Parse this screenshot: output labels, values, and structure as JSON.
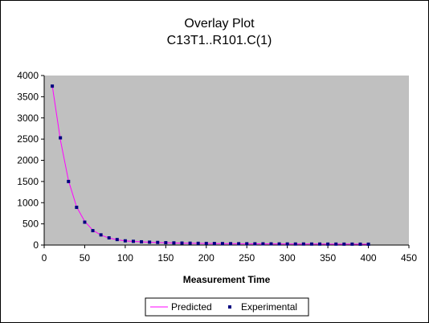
{
  "chart_data": {
    "type": "scatter",
    "title": "Overlay Plot",
    "subtitle": "C13T1..R101.C(1)",
    "xlabel": "Measurement Time",
    "ylabel": "",
    "xlim": [
      0,
      450
    ],
    "ylim": [
      0,
      4000
    ],
    "x_ticks": [
      0,
      50,
      100,
      150,
      200,
      250,
      300,
      350,
      400,
      450
    ],
    "y_ticks": [
      0,
      500,
      1000,
      1500,
      2000,
      2500,
      3000,
      3500,
      4000
    ],
    "grid": false,
    "legend_position": "bottom",
    "plot_background": "#C0C0C0",
    "series": [
      {
        "name": "Predicted",
        "style": "line",
        "color": "#FF00FF",
        "x": [
          10,
          20,
          30,
          40,
          50,
          60,
          70,
          80,
          90,
          100,
          110,
          120,
          130,
          140,
          150,
          160,
          170,
          180,
          190,
          200,
          210,
          220,
          230,
          240,
          250,
          260,
          270,
          280,
          290,
          300,
          310,
          320,
          330,
          340,
          350,
          360,
          370,
          380,
          390,
          400
        ],
        "values": [
          3760,
          2480,
          1520,
          900,
          560,
          350,
          235,
          165,
          125,
          100,
          85,
          75,
          67,
          60,
          55,
          50,
          46,
          43,
          40,
          38,
          36,
          34,
          32,
          31,
          30,
          29,
          28,
          27,
          26,
          25,
          24,
          24,
          23,
          23,
          22,
          22,
          21,
          21,
          20,
          20
        ]
      },
      {
        "name": "Experimental",
        "style": "marker",
        "color": "#000080",
        "x": [
          10,
          20,
          30,
          40,
          50,
          60,
          70,
          80,
          90,
          100,
          110,
          120,
          130,
          140,
          150,
          160,
          170,
          180,
          190,
          200,
          210,
          220,
          230,
          240,
          250,
          260,
          270,
          280,
          290,
          300,
          310,
          320,
          330,
          340,
          350,
          360,
          370,
          380,
          390,
          400
        ],
        "values": [
          3750,
          2530,
          1500,
          890,
          540,
          340,
          240,
          170,
          130,
          100,
          88,
          77,
          68,
          62,
          56,
          51,
          47,
          44,
          41,
          39,
          37,
          35,
          33,
          32,
          31,
          30,
          29,
          28,
          27,
          26,
          25,
          25,
          24,
          24,
          23,
          23,
          22,
          22,
          21,
          21
        ]
      }
    ]
  }
}
